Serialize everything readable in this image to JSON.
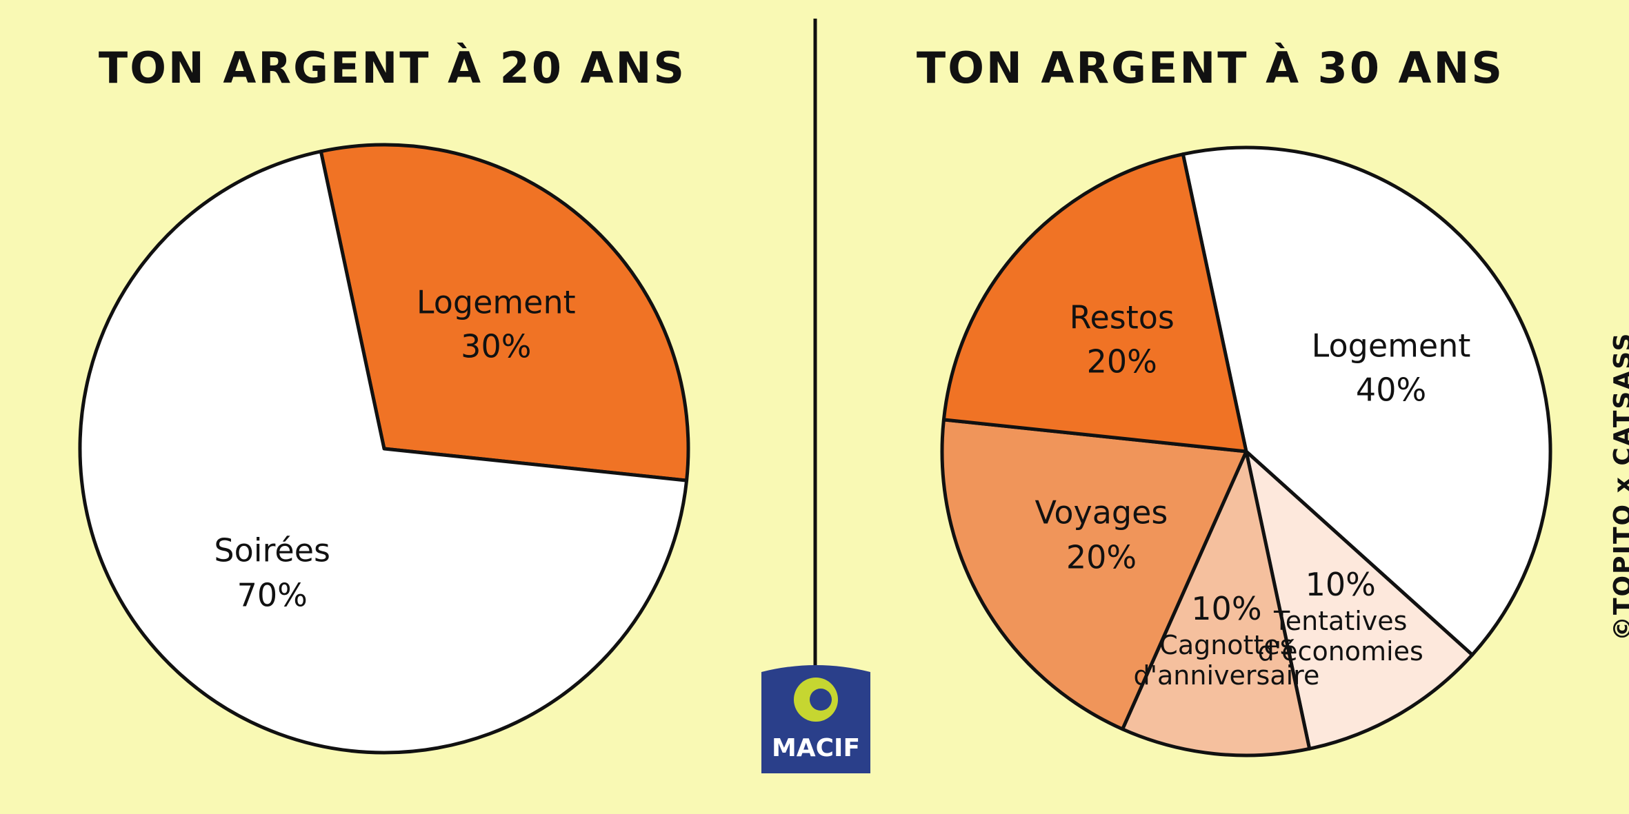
{
  "chart_data": [
    {
      "type": "pie",
      "title": "TON ARGENT À 20 ANS",
      "categories": [
        "Logement",
        "Soirées"
      ],
      "values": [
        30,
        70
      ],
      "value_labels": [
        "30%",
        "70%"
      ],
      "colors": [
        "#f07325",
        "#ffffff"
      ]
    },
    {
      "type": "pie",
      "title": "TON ARGENT À 30 ANS",
      "categories": [
        "Logement",
        "Tentatives d'économies",
        "Cagnottes d'anniversaire",
        "Voyages",
        "Restos"
      ],
      "values": [
        40,
        10,
        10,
        20,
        20
      ],
      "value_labels": [
        "40%",
        "10%",
        "10%",
        "20%",
        "20%"
      ],
      "colors": [
        "#ffffff",
        "#fde8dc",
        "#f5c09e",
        "#f0955a",
        "#f07325"
      ]
    }
  ],
  "logo": "MACIF",
  "credit": "©TOPITO x CATSASS"
}
